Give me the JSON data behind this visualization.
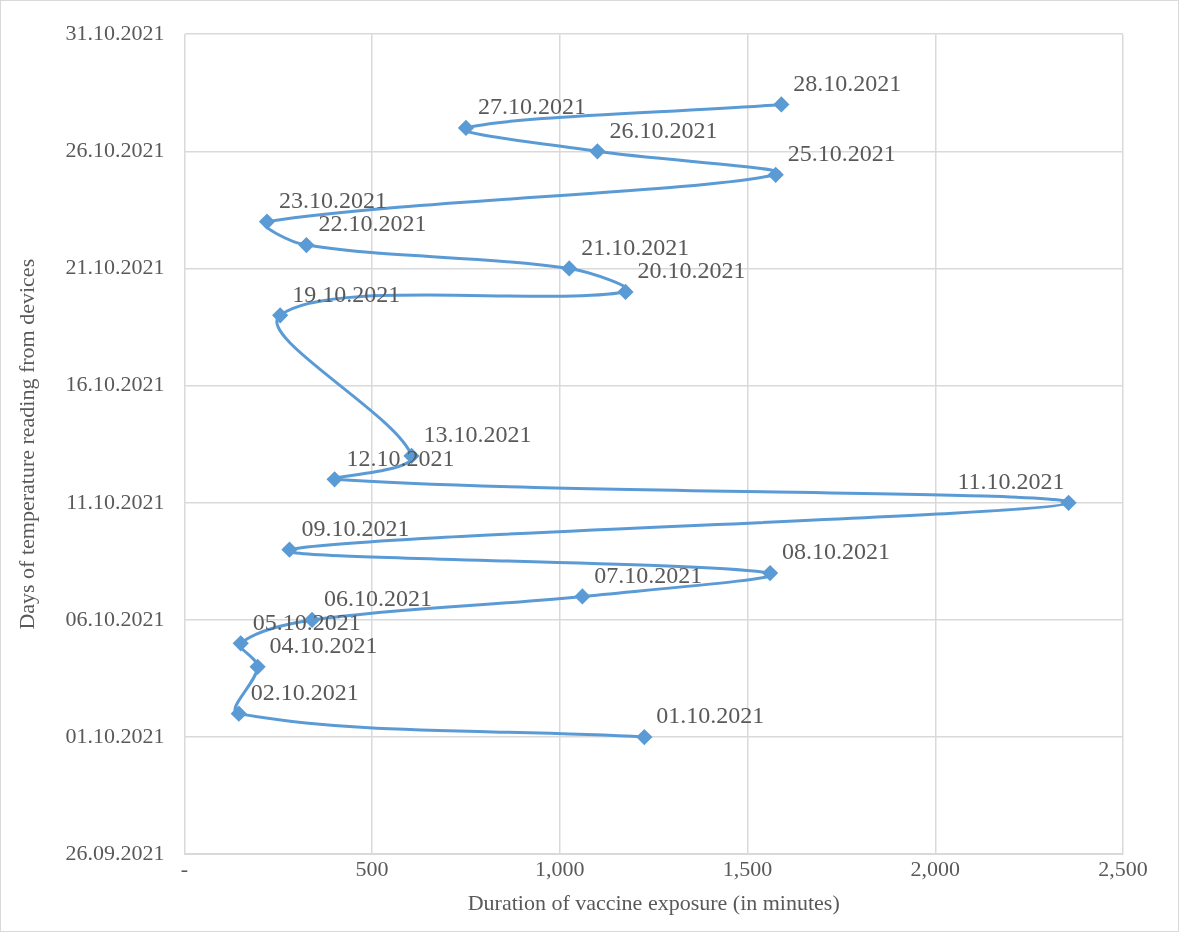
{
  "chart_data": {
    "type": "line",
    "orientation": "horizontal",
    "xlabel": "Duration of vaccine exposure (in minutes)",
    "ylabel": "Days of temperature reading from devices",
    "series": [
      {
        "color": "#5b9bd5",
        "x": [
          "2021-10-01",
          "2021-10-02",
          "2021-10-04",
          "2021-10-05",
          "2021-10-06",
          "2021-10-07",
          "2021-10-08",
          "2021-10-09",
          "2021-10-11",
          "2021-10-12",
          "2021-10-13",
          "2021-10-19",
          "2021-10-20",
          "2021-10-21",
          "2021-10-22",
          "2021-10-23",
          "2021-10-25",
          "2021-10-26",
          "2021-10-27",
          "2021-10-28"
        ],
        "values": [
          1225,
          145,
          195,
          150,
          340,
          1060,
          1560,
          280,
          2355,
          400,
          605,
          255,
          1175,
          1025,
          325,
          220,
          1575,
          1100,
          750,
          1590
        ]
      }
    ],
    "annotations": [
      {
        "text": "01.10.2021",
        "x": 1225,
        "y": "2021-10-01"
      },
      {
        "text": "02.10.2021",
        "x": 145,
        "y": "2021-10-02"
      },
      {
        "text": "04.10.2021",
        "x": 195,
        "y": "2021-10-04"
      },
      {
        "text": "05.10.2021",
        "x": 150,
        "y": "2021-10-05"
      },
      {
        "text": "06.10.2021",
        "x": 340,
        "y": "2021-10-06"
      },
      {
        "text": "07.10.2021",
        "x": 1060,
        "y": "2021-10-07"
      },
      {
        "text": "08.10.2021",
        "x": 1560,
        "y": "2021-10-08"
      },
      {
        "text": "09.10.2021",
        "x": 280,
        "y": "2021-10-09"
      },
      {
        "text": "11.10.2021",
        "x": 2355,
        "y": "2021-10-11"
      },
      {
        "text": "12.10.2021",
        "x": 400,
        "y": "2021-10-12"
      },
      {
        "text": "13.10.2021",
        "x": 605,
        "y": "2021-10-13"
      },
      {
        "text": "19.10.2021",
        "x": 255,
        "y": "2021-10-19"
      },
      {
        "text": "20.10.2021",
        "x": 1175,
        "y": "2021-10-20"
      },
      {
        "text": "21.10.2021",
        "x": 1025,
        "y": "2021-10-21"
      },
      {
        "text": "22.10.2021",
        "x": 325,
        "y": "2021-10-22"
      },
      {
        "text": "23.10.2021",
        "x": 220,
        "y": "2021-10-23"
      },
      {
        "text": "25.10.2021",
        "x": 1575,
        "y": "2021-10-25"
      },
      {
        "text": "26.10.2021",
        "x": 1100,
        "y": "2021-10-26"
      },
      {
        "text": "27.10.2021",
        "x": 750,
        "y": "2021-10-27"
      },
      {
        "text": "28.10.2021",
        "x": 1590,
        "y": "2021-10-28"
      }
    ],
    "xlim": [
      0,
      2500
    ],
    "xticks": [
      {
        "value": 0,
        "label": "-"
      },
      500,
      {
        "value": 1000,
        "label": "1,000"
      },
      {
        "value": 1500,
        "label": "1,500"
      },
      {
        "value": 2000,
        "label": "2,000"
      },
      {
        "value": 2500,
        "label": "2,500"
      }
    ],
    "ylim": [
      "2021-09-26",
      "2021-10-31"
    ],
    "yticks": [
      {
        "value": "2021-09-26",
        "label": "26.09.2021"
      },
      {
        "value": "2021-10-01",
        "label": "01.10.2021"
      },
      {
        "value": "2021-10-06",
        "label": "06.10.2021"
      },
      {
        "value": "2021-10-11",
        "label": "11.10.2021"
      },
      {
        "value": "2021-10-16",
        "label": "16.10.2021"
      },
      {
        "value": "2021-10-21",
        "label": "21.10.2021"
      },
      {
        "value": "2021-10-26",
        "label": "26.10.2021"
      },
      {
        "value": "2021-10-31",
        "label": "31.10.2021"
      }
    ],
    "grid": true,
    "legend": false,
    "marker": "diamond",
    "line_style": "solid"
  }
}
